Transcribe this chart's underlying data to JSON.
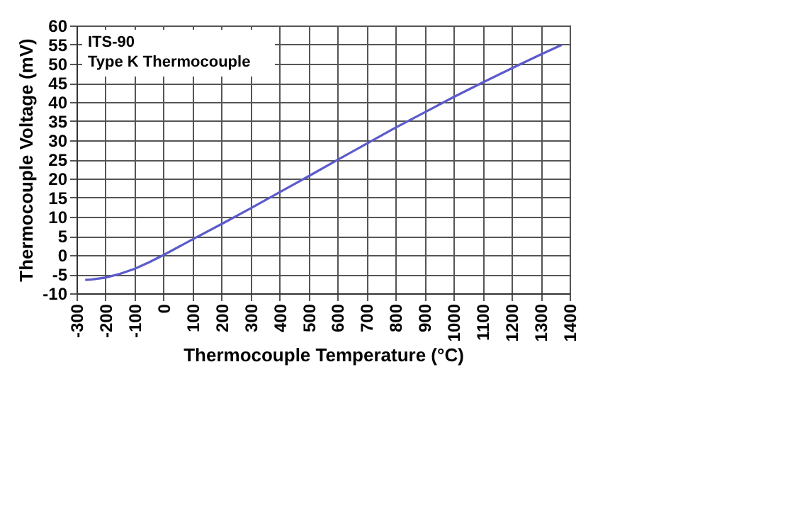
{
  "chart_data": {
    "type": "line",
    "xlabel": "Thermocouple Temperature (°C)",
    "ylabel": "Thermocouple Voltage (mV)",
    "annotations": [
      "ITS-90",
      "Type K Thermocouple"
    ],
    "x": [
      -270,
      -250,
      -200,
      -150,
      -100,
      -50,
      0,
      100,
      200,
      300,
      400,
      500,
      600,
      700,
      800,
      900,
      1000,
      1100,
      1200,
      1300,
      1372
    ],
    "series": [
      {
        "color": "#5b5bcc",
        "values": [
          -6.5,
          -6.4,
          -5.9,
          -4.9,
          -3.6,
          -1.9,
          0,
          4.1,
          8.1,
          12.2,
          16.4,
          20.6,
          24.9,
          29.1,
          33.3,
          37.3,
          41.3,
          45.1,
          48.8,
          52.4,
          54.9
        ]
      }
    ],
    "xlim": [
      -300,
      1400
    ],
    "xticks": [
      -300,
      -200,
      -100,
      0,
      100,
      200,
      300,
      400,
      500,
      600,
      700,
      800,
      900,
      1000,
      1100,
      1200,
      1300,
      1400
    ],
    "ylim": [
      -10,
      60
    ],
    "yticks": [
      -10,
      -5,
      0,
      5,
      10,
      15,
      20,
      25,
      30,
      35,
      40,
      45,
      50,
      55,
      60
    ],
    "grid": true,
    "line_style": "solid",
    "marker": "none"
  }
}
